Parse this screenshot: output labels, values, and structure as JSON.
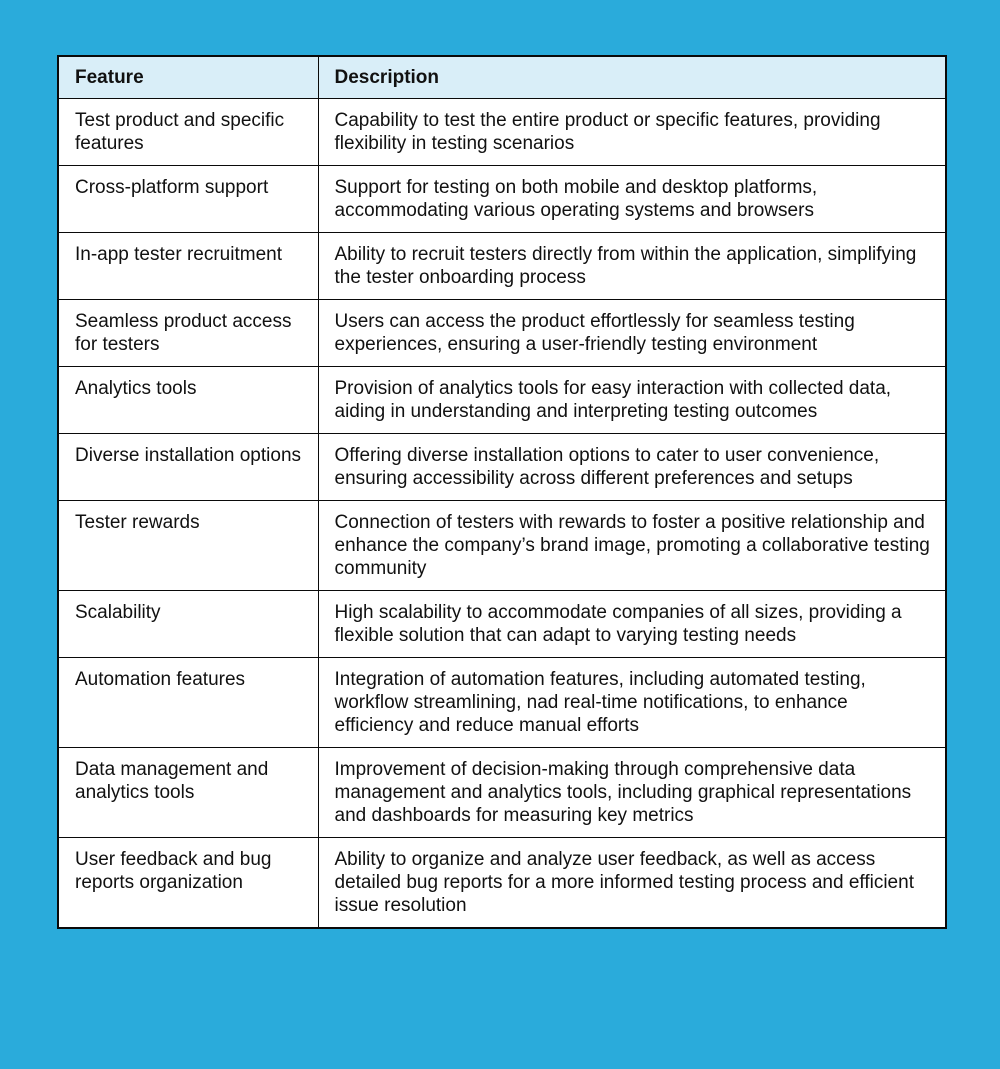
{
  "colors": {
    "page_background": "#2AABDB",
    "header_background": "#D9EEF8",
    "table_background": "#FFFFFF",
    "border": "#0A0A0A",
    "text": "#111111"
  },
  "chart_data": {
    "type": "table",
    "title": "",
    "columns": [
      "Feature",
      "Description"
    ],
    "rows": [
      [
        "Test product and specific features",
        "Capability to test the entire product or specific features, providing flexibility in testing scenarios"
      ],
      [
        "Cross-platform support",
        "Support for testing on both mobile and desktop platforms, accommodating various operating systems and browsers"
      ],
      [
        "In-app tester recruitment",
        "Ability to recruit testers directly from within the application, simplifying the tester onboarding process"
      ],
      [
        "Seamless product access for testers",
        "Users can access the product effortlessly for seamless testing experiences, ensuring a user-friendly testing environment"
      ],
      [
        "Analytics tools",
        "Provision of analytics tools for easy interaction with collected data, aiding in understanding and interpreting testing outcomes"
      ],
      [
        "Diverse installation options",
        "Offering diverse installation options to cater to user convenience, ensuring accessibility across different preferences and setups"
      ],
      [
        "Tester rewards",
        "Connection of testers with rewards to foster a positive relationship and enhance the company’s brand image, promoting a collaborative testing community"
      ],
      [
        "Scalability",
        "High scalability to accommodate companies of all sizes, providing a flexible solution that can adapt to varying testing needs"
      ],
      [
        "Automation features",
        "Integration of automation features, including automated testing, workflow streamlining, nad real-time notifications, to enhance efficiency and reduce manual efforts"
      ],
      [
        "Data management and analytics tools",
        "Improvement of decision-making through comprehensive data management and analytics tools, including graphical representations and dashboards for measuring key metrics"
      ],
      [
        "User feedback and bug reports organization",
        "Ability to organize and analyze user feedback, as well as access detailed bug reports for a more informed testing process and efficient issue resolution"
      ]
    ]
  }
}
